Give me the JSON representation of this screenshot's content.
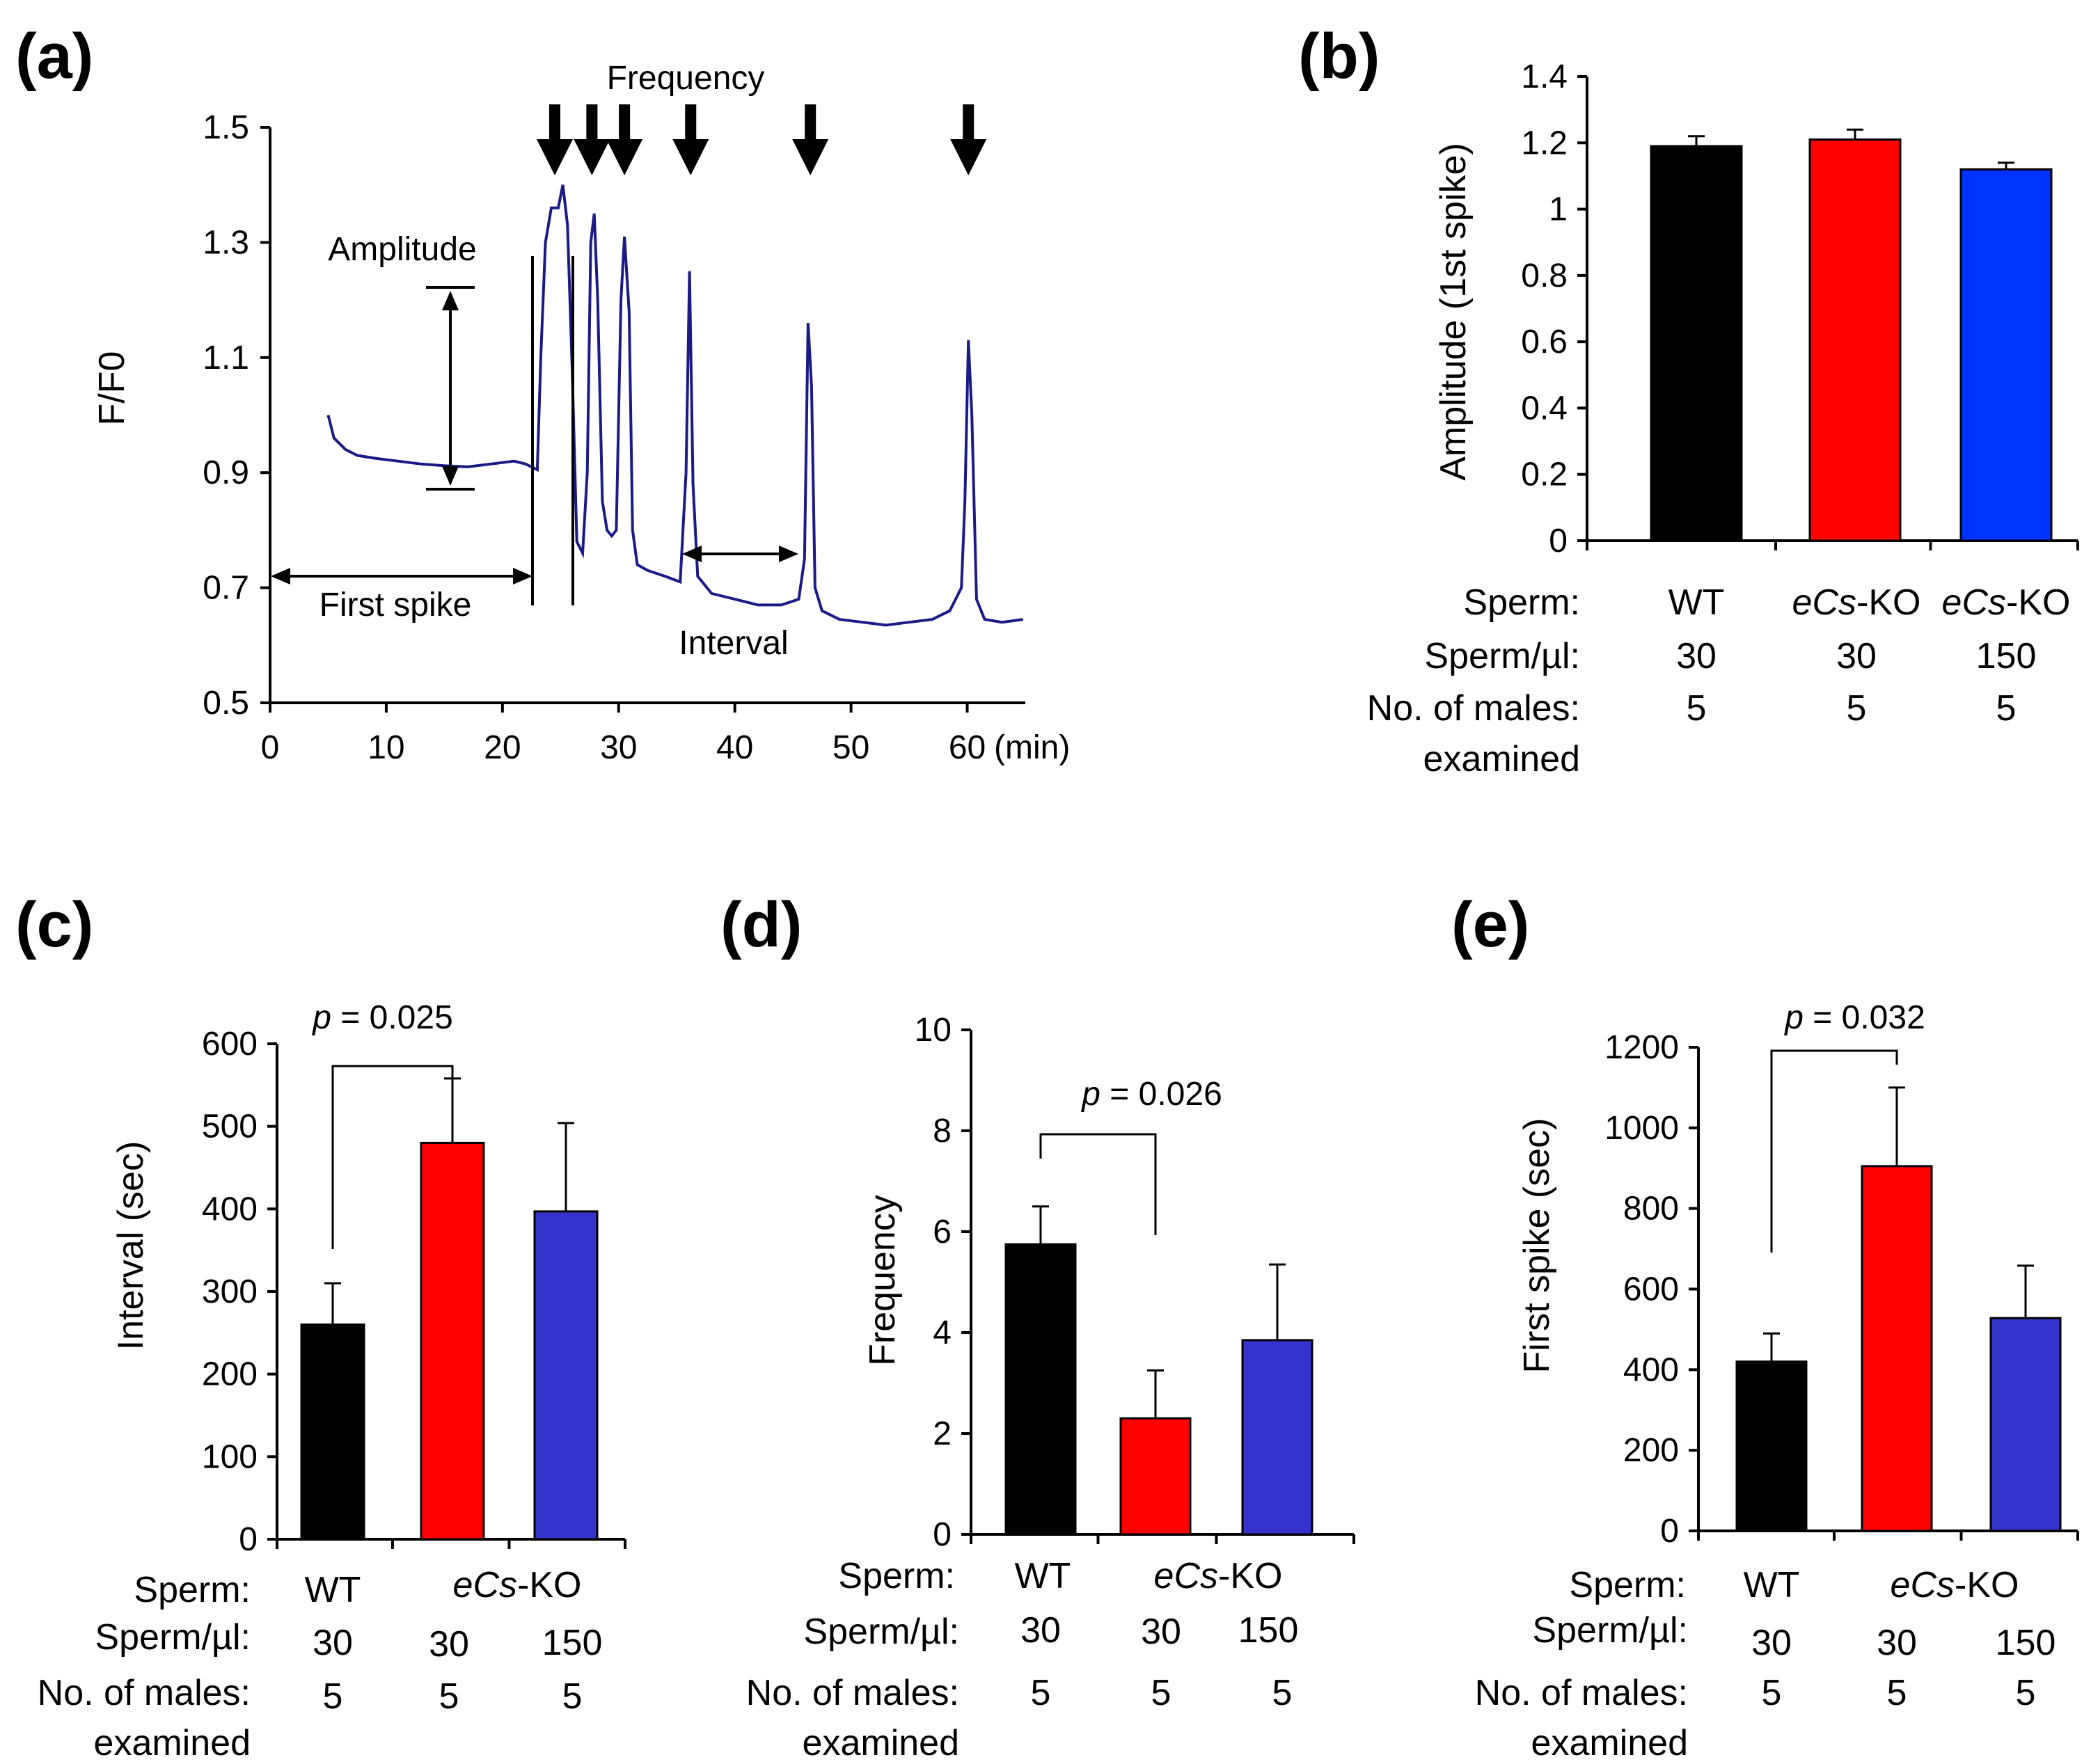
{
  "chart_data": [
    {
      "panel": "(a)",
      "type": "line",
      "title": "",
      "xlabel": "(min)",
      "ylabel": "F/F0",
      "xlim": [
        0,
        65
      ],
      "ylim": [
        0.5,
        1.5
      ],
      "xticks": [
        0,
        10,
        20,
        30,
        40,
        50,
        60
      ],
      "yticks": [
        0.5,
        0.7,
        0.9,
        1.1,
        1.3,
        1.5
      ],
      "color": "#1b1b87",
      "annotations": {
        "amplitude": "Amplitude",
        "frequency": "Frequency",
        "first_spike": "First spike",
        "interval": "Interval"
      },
      "trace": [
        [
          5.0,
          1.0
        ],
        [
          5.5,
          0.96
        ],
        [
          6.5,
          0.94
        ],
        [
          7.5,
          0.93
        ],
        [
          9,
          0.925
        ],
        [
          11,
          0.92
        ],
        [
          13,
          0.915
        ],
        [
          15,
          0.912
        ],
        [
          17,
          0.91
        ],
        [
          19,
          0.915
        ],
        [
          21,
          0.92
        ],
        [
          22,
          0.915
        ],
        [
          23,
          0.905
        ],
        [
          23.3,
          1.1
        ],
        [
          23.7,
          1.3
        ],
        [
          24.2,
          1.36
        ],
        [
          24.8,
          1.36
        ],
        [
          25.2,
          1.4
        ],
        [
          25.6,
          1.33
        ],
        [
          26.0,
          1.08
        ],
        [
          26.4,
          0.78
        ],
        [
          26.9,
          0.76
        ],
        [
          27.3,
          0.9
        ],
        [
          27.6,
          1.3
        ],
        [
          27.9,
          1.35
        ],
        [
          28.2,
          1.2
        ],
        [
          28.6,
          0.85
        ],
        [
          29.0,
          0.8
        ],
        [
          29.4,
          0.79
        ],
        [
          29.8,
          0.8
        ],
        [
          30.2,
          1.2
        ],
        [
          30.5,
          1.31
        ],
        [
          30.9,
          1.18
        ],
        [
          31.2,
          0.8
        ],
        [
          31.6,
          0.74
        ],
        [
          32.5,
          0.73
        ],
        [
          34,
          0.72
        ],
        [
          35.3,
          0.71
        ],
        [
          35.8,
          0.9
        ],
        [
          36.1,
          1.25
        ],
        [
          36.4,
          0.88
        ],
        [
          36.8,
          0.72
        ],
        [
          38,
          0.69
        ],
        [
          40,
          0.68
        ],
        [
          42,
          0.67
        ],
        [
          44,
          0.67
        ],
        [
          45.5,
          0.68
        ],
        [
          46.0,
          0.75
        ],
        [
          46.3,
          1.16
        ],
        [
          46.6,
          1.05
        ],
        [
          46.9,
          0.7
        ],
        [
          47.5,
          0.66
        ],
        [
          49,
          0.645
        ],
        [
          51,
          0.64
        ],
        [
          53,
          0.635
        ],
        [
          55,
          0.64
        ],
        [
          57,
          0.645
        ],
        [
          58.5,
          0.66
        ],
        [
          59.5,
          0.7
        ],
        [
          59.8,
          0.85
        ],
        [
          60.1,
          1.13
        ],
        [
          60.4,
          1.0
        ],
        [
          60.8,
          0.68
        ],
        [
          61.5,
          0.645
        ],
        [
          63,
          0.64
        ],
        [
          64.8,
          0.645
        ]
      ],
      "arrow_times": [
        24.5,
        27.7,
        30.5,
        36.2,
        46.5,
        60.1
      ]
    },
    {
      "panel": "(b)",
      "type": "bar",
      "ylabel": "Amplitude (1st spike)",
      "ylim": [
        0,
        1.4
      ],
      "yticks": [
        0,
        0.2,
        0.4,
        0.6,
        0.8,
        1,
        1.2,
        1.4
      ],
      "categories": [
        "WT",
        "eCs-KO",
        "eCs-KO"
      ],
      "values": [
        1.19,
        1.21,
        1.12
      ],
      "errors": [
        0.03,
        0.03,
        0.02
      ],
      "colors": [
        "#000000",
        "#ff0000",
        "#0033ff"
      ]
    },
    {
      "panel": "(c)",
      "type": "bar",
      "ylabel": "Interval (sec)",
      "ylim": [
        0,
        600
      ],
      "yticks": [
        0,
        100,
        200,
        300,
        400,
        500,
        600
      ],
      "categories": [
        "WT",
        "eCs-KO",
        "eCs-KO"
      ],
      "values": [
        260,
        480,
        397
      ],
      "errors": [
        50,
        78,
        107
      ],
      "colors": [
        "#000000",
        "#ff0000",
        "#3333cc"
      ],
      "p_value": "p = 0.025"
    },
    {
      "panel": "(d)",
      "type": "bar",
      "ylabel": "Frequency",
      "ylim": [
        0,
        10
      ],
      "yticks": [
        0,
        2,
        4,
        6,
        8,
        10
      ],
      "categories": [
        "WT",
        "eCs-KO",
        "eCs-KO"
      ],
      "values": [
        5.75,
        2.3,
        3.85
      ],
      "errors": [
        0.75,
        0.95,
        1.5
      ],
      "colors": [
        "#000000",
        "#ff0000",
        "#3333cc"
      ],
      "p_value": "p = 0.026"
    },
    {
      "panel": "(e)",
      "type": "bar",
      "ylabel": "First spike (sec)",
      "ylim": [
        0,
        1200
      ],
      "yticks": [
        0,
        200,
        400,
        600,
        800,
        1000,
        1200
      ],
      "categories": [
        "WT",
        "eCs-KO",
        "eCs-KO"
      ],
      "values": [
        420,
        905,
        528
      ],
      "errors": [
        70,
        195,
        130
      ],
      "colors": [
        "#000000",
        "#ff0000",
        "#3333cc"
      ],
      "p_value": "p = 0.032"
    }
  ],
  "table": {
    "row_sperm": "Sperm:",
    "row_density": "Sperm/µl:",
    "row_males_1": "No. of males:",
    "row_males_2": "examined",
    "wt": "WT",
    "ko_italic": "eCs",
    "ko_suffix": "-KO",
    "b_density": [
      "30",
      "30",
      "150"
    ],
    "b_males": [
      "5",
      "5",
      "5"
    ],
    "c_density": [
      "30",
      "30",
      "150"
    ],
    "c_males": [
      "5",
      "5",
      "5"
    ],
    "d_density": [
      "30",
      "30",
      "150"
    ],
    "d_males": [
      "5",
      "5",
      "5"
    ],
    "e_density": [
      "30",
      "30",
      "150"
    ],
    "e_males": [
      "5",
      "5",
      "5"
    ]
  }
}
